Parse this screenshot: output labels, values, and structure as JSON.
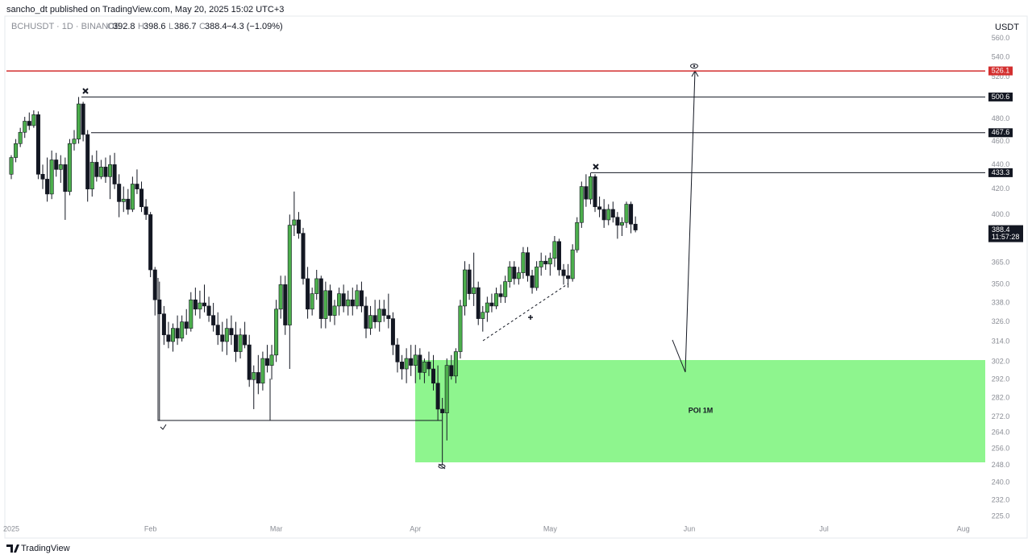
{
  "header": {
    "published": "sancho_dt published on TradingView.com, May 20, 2025 15:02 UTC+3",
    "symbol": "BCHUSDT · 1D · BINANCE",
    "o": "O",
    "h": "H",
    "l": "L",
    "c": "C",
    "change": "−4.3 (−1.09%)",
    "currency": "USDT",
    "countdown": "11:57:28",
    "poi": "POI 1M"
  },
  "footer": {
    "brand": "TradingView"
  },
  "chart_data": {
    "type": "candlestick",
    "log_scale": true,
    "grid": false,
    "up_color": "#4cae4c",
    "down_color": "#131722",
    "categories": [
      null,
      null,
      null,
      null,
      null,
      null,
      null,
      null,
      null,
      null,
      null,
      null,
      null,
      null,
      null,
      null,
      null,
      null,
      null,
      null,
      null,
      null,
      null,
      null,
      null,
      null,
      null,
      null,
      null,
      null,
      null,
      null,
      null,
      null,
      null,
      null,
      null,
      null,
      null,
      null,
      null,
      null,
      null,
      null,
      null,
      null,
      null,
      null,
      null,
      null,
      null,
      null,
      null,
      null,
      null,
      null,
      null,
      null,
      null,
      null,
      null,
      null,
      null,
      null,
      null,
      null,
      null,
      null,
      null,
      null,
      null,
      null,
      null,
      null,
      null,
      null,
      null,
      null,
      null,
      null,
      null,
      null,
      null,
      null,
      null,
      null,
      null,
      null,
      null,
      null,
      null,
      null,
      null,
      null,
      null,
      null,
      null,
      null,
      null,
      null,
      null,
      null,
      null,
      null,
      null,
      null,
      null,
      null,
      null,
      null,
      null,
      null,
      null,
      null,
      null,
      null,
      null,
      null,
      null,
      null,
      null,
      null,
      null,
      null,
      null,
      null,
      null,
      null,
      null,
      null,
      null,
      null,
      null,
      null,
      null,
      null,
      null,
      null,
      null,
      null
    ],
    "open": [
      432,
      446,
      458,
      468,
      478,
      474,
      484,
      432,
      428,
      416,
      444,
      436,
      440,
      418,
      458,
      462,
      494,
      466,
      420,
      442,
      430,
      438,
      430,
      440,
      424,
      410,
      412,
      404,
      424,
      420,
      406,
      400,
      360,
      340,
      331,
      318,
      314,
      322,
      316,
      326,
      322,
      340,
      334,
      338,
      336,
      330,
      324,
      318,
      314,
      322,
      318,
      308,
      318,
      312,
      292,
      296,
      290,
      304,
      300,
      306,
      334,
      350,
      324,
      392,
      396,
      386,
      354,
      334,
      344,
      354,
      328,
      346,
      330,
      336,
      344,
      336,
      340,
      336,
      346,
      336,
      322,
      330,
      326,
      334,
      330,
      328,
      312,
      302,
      298,
      304,
      300,
      306,
      296,
      302,
      298,
      290,
      276,
      274,
      300,
      294,
      308,
      336,
      360,
      344,
      348,
      328,
      332,
      338,
      336,
      344,
      342,
      352,
      362,
      354,
      358,
      372,
      356,
      348,
      362,
      366,
      364,
      368,
      380,
      360,
      356,
      354,
      374,
      394,
      422,
      412,
      430,
      406,
      404,
      396,
      404,
      398,
      392,
      394,
      408,
      392.8
    ],
    "high": [
      448,
      462,
      472,
      482,
      486,
      488,
      487,
      440,
      446,
      452,
      450,
      448,
      446,
      462,
      470,
      500.6,
      496,
      470,
      448,
      452,
      444,
      446,
      448,
      450,
      432,
      422,
      420,
      430,
      436,
      426,
      412,
      402,
      362,
      352,
      336,
      326,
      325,
      330,
      330,
      334,
      345,
      348,
      346,
      350,
      342,
      338,
      332,
      326,
      328,
      330,
      326,
      322,
      326,
      318,
      300,
      306,
      308,
      312,
      312,
      340,
      356,
      356,
      400,
      418,
      402,
      390,
      362,
      348,
      360,
      356,
      352,
      350,
      340,
      348,
      350,
      346,
      348,
      350,
      352,
      342,
      336,
      340,
      340,
      340,
      344,
      332,
      316,
      306,
      310,
      312,
      312,
      310,
      304,
      308,
      306,
      300,
      282,
      304,
      306,
      310,
      340,
      366,
      364,
      372,
      352,
      336,
      342,
      344,
      348,
      350,
      356,
      366,
      366,
      362,
      376,
      376,
      360,
      366,
      372,
      370,
      372,
      384,
      382,
      364,
      364,
      378,
      398,
      426,
      432,
      433.3,
      432,
      414,
      412,
      408,
      410,
      402,
      398,
      410,
      410,
      398.6
    ],
    "low": [
      428,
      442,
      455,
      463,
      470,
      472,
      428,
      420,
      410,
      412,
      430,
      425,
      396,
      415,
      452,
      458,
      460,
      410,
      414,
      426,
      428,
      425,
      412,
      420,
      398,
      402,
      400,
      402,
      416,
      402,
      396,
      355,
      330,
      270,
      312,
      310,
      308,
      312,
      314,
      318,
      320,
      330,
      328,
      332,
      326,
      320,
      312,
      308,
      306,
      312,
      302,
      304,
      310,
      288,
      276,
      284,
      286,
      296,
      292,
      302,
      328,
      318,
      298,
      384,
      382,
      350,
      328,
      330,
      340,
      322,
      322,
      326,
      324,
      330,
      332,
      330,
      330,
      334,
      332,
      316,
      318,
      322,
      320,
      326,
      322,
      306,
      296,
      292,
      290,
      294,
      290,
      292,
      290,
      294,
      286,
      270,
      248,
      260,
      292,
      290,
      304,
      330,
      340,
      336,
      324,
      320,
      326,
      332,
      334,
      338,
      338,
      348,
      350,
      350,
      354,
      352,
      344,
      346,
      356,
      360,
      356,
      362,
      356,
      350,
      348,
      352,
      372,
      390,
      406,
      408,
      402,
      398,
      390,
      392,
      394,
      382,
      384,
      390,
      386,
      386.7
    ],
    "close": [
      446,
      458,
      468,
      478,
      474,
      484,
      432,
      428,
      416,
      444,
      436,
      440,
      418,
      458,
      462,
      494,
      466,
      420,
      442,
      430,
      438,
      430,
      440,
      424,
      410,
      412,
      404,
      424,
      420,
      406,
      400,
      360,
      340,
      331,
      318,
      314,
      322,
      316,
      326,
      322,
      340,
      334,
      338,
      336,
      330,
      324,
      318,
      314,
      322,
      318,
      308,
      318,
      312,
      292,
      296,
      290,
      304,
      300,
      306,
      334,
      350,
      324,
      392,
      396,
      386,
      354,
      334,
      344,
      354,
      328,
      346,
      330,
      336,
      344,
      336,
      340,
      336,
      346,
      336,
      322,
      330,
      326,
      334,
      330,
      328,
      312,
      302,
      298,
      304,
      300,
      306,
      296,
      302,
      298,
      290,
      276,
      274,
      300,
      294,
      308,
      336,
      360,
      344,
      348,
      328,
      332,
      338,
      336,
      344,
      342,
      352,
      362,
      354,
      358,
      372,
      356,
      348,
      362,
      366,
      364,
      368,
      380,
      360,
      356,
      354,
      374,
      394,
      422,
      412,
      430,
      406,
      404,
      396,
      404,
      398,
      392,
      394,
      408,
      392.8,
      388.4
    ],
    "xlim": [
      -1.08,
      216.9
    ],
    "xticks": [
      {
        "value": 0,
        "label": "2025"
      },
      {
        "value": 31,
        "label": "Feb"
      },
      {
        "value": 59,
        "label": "Mar"
      },
      {
        "value": 90,
        "label": "Apr"
      },
      {
        "value": 120,
        "label": "May"
      },
      {
        "value": 151,
        "label": "Jun"
      },
      {
        "value": 181,
        "label": "Jul"
      },
      {
        "value": 212,
        "label": "Aug"
      }
    ],
    "ylim": [
      216.5,
      582.3
    ],
    "yticks": [
      {
        "value": 560,
        "label": "560.0"
      },
      {
        "value": 540,
        "label": "540.0"
      },
      {
        "value": 520,
        "label": "520.0"
      },
      {
        "value": 480,
        "label": "480.0"
      },
      {
        "value": 460,
        "label": "460.0"
      },
      {
        "value": 440,
        "label": "440.0"
      },
      {
        "value": 420,
        "label": "420.0"
      },
      {
        "value": 400,
        "label": "400.0"
      },
      {
        "value": 365,
        "label": "365.0"
      },
      {
        "value": 350,
        "label": "350.0"
      },
      {
        "value": 338,
        "label": "338.0"
      },
      {
        "value": 326,
        "label": "326.0"
      },
      {
        "value": 314,
        "label": "314.0"
      },
      {
        "value": 302,
        "label": "302.0"
      },
      {
        "value": 292,
        "label": "292.0"
      },
      {
        "value": 282,
        "label": "282.0"
      },
      {
        "value": 272,
        "label": "272.0"
      },
      {
        "value": 264,
        "label": "264.0"
      },
      {
        "value": 256,
        "label": "256.0"
      },
      {
        "value": 248,
        "label": "248.0"
      },
      {
        "value": 240,
        "label": "240.0"
      },
      {
        "value": 232,
        "label": "232.0"
      },
      {
        "value": 225,
        "label": "225.0"
      }
    ],
    "hlines": [
      {
        "value": 526.1,
        "color": "#d32f2f"
      },
      {
        "value": 500.6,
        "color": "#131722"
      },
      {
        "value": 467.6,
        "color": "#131722"
      },
      {
        "value": 433.3,
        "color": "#131722"
      }
    ]
  }
}
